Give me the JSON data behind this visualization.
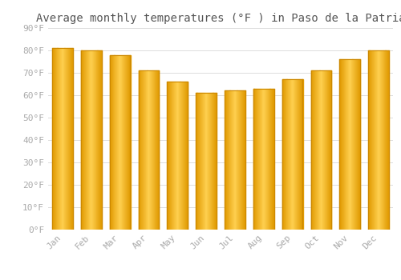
{
  "title": "Average monthly temperatures (°F ) in Paso de la Patria",
  "months": [
    "Jan",
    "Feb",
    "Mar",
    "Apr",
    "May",
    "Jun",
    "Jul",
    "Aug",
    "Sep",
    "Oct",
    "Nov",
    "Dec"
  ],
  "values": [
    81,
    80,
    78,
    71,
    66,
    61,
    62,
    63,
    67,
    71,
    76,
    80
  ],
  "bar_color_center": "#FDB827",
  "bar_color_edge_dark": "#E07800",
  "bar_color_bright": "#FFD060",
  "ylim": [
    0,
    90
  ],
  "ytick_step": 10,
  "background_color": "#ffffff",
  "plot_bg_color": "#ffffff",
  "grid_color": "#dddddd",
  "title_fontsize": 10,
  "tick_fontsize": 8,
  "tick_label_color": "#aaaaaa",
  "title_color": "#555555",
  "font_family": "monospace"
}
